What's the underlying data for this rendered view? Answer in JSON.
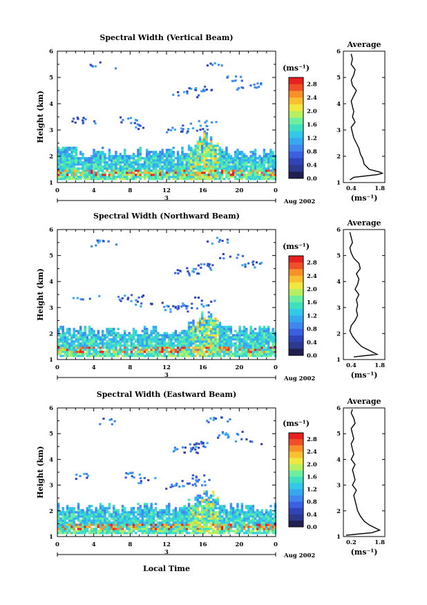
{
  "colorbar_unit": "(ms⁻¹)",
  "colorbar_ticks": [
    "2.8",
    "2.4",
    "2.0",
    "1.6",
    "1.2",
    "0.8",
    "0.4",
    "0.0"
  ],
  "colors": {
    "scale": [
      "#2b3a8c",
      "#2f44b8",
      "#3a5fe0",
      "#3f86f0",
      "#35a8f0",
      "#33c8e8",
      "#3ee0c0",
      "#6cf0a0",
      "#b6f060",
      "#f0e840",
      "#f8c030",
      "#f89028",
      "#f05028",
      "#e82020"
    ],
    "below_threshold": "#202050"
  },
  "panels": [
    {
      "title": "Spectral Width (Vertical Beam)",
      "ylabel": "Height (km)",
      "date_label": "Aug 2002",
      "day_label": "3",
      "avg_title": "Average",
      "avg_xlabel": "(ms⁻¹)",
      "avg_xticks": [
        "0.4",
        "1.8"
      ]
    },
    {
      "title": "Spectral Width (Northward Beam)",
      "ylabel": "Height (km)",
      "date_label": "Aug 2002",
      "day_label": "3",
      "avg_title": "Average",
      "avg_xlabel": "(ms⁻¹)",
      "avg_xticks": [
        "0.4",
        "1.8"
      ]
    },
    {
      "title": "Spectral Width (Eastward Beam)",
      "ylabel": "Height (km)",
      "date_label": "Aug 2002",
      "day_label": "3",
      "avg_title": "Average",
      "avg_xlabel": "(ms⁻¹)",
      "avg_xticks": [
        "0.2",
        "1.8"
      ]
    }
  ],
  "xlabel": "Local Time",
  "chart_data": [
    {
      "type": "heatmap",
      "title": "Spectral Width (Vertical Beam)",
      "xlabel": "",
      "ylabel": "Height (km)",
      "x_ticks": [
        "0",
        "4",
        "8",
        "12",
        "16",
        "20",
        "0"
      ],
      "y_ticks": [
        "1",
        "2",
        "3",
        "4",
        "5",
        "6"
      ],
      "xlim": [
        0,
        24
      ],
      "ylim": [
        1,
        6
      ],
      "colorbar": {
        "label": "(ms⁻¹)",
        "range": [
          0,
          3.0
        ]
      },
      "average_profile": {
        "title": "Average",
        "xlabel": "(ms⁻¹)",
        "xlim": [
          0.2,
          1.8
        ],
        "height": [
          1.1,
          1.2,
          1.3,
          1.35,
          1.4,
          1.5,
          1.7,
          1.9,
          2.1,
          2.3,
          2.5,
          2.7,
          2.9,
          3.1,
          3.3,
          3.5,
          3.7,
          3.9,
          4.1,
          4.3,
          4.5,
          4.7,
          4.9,
          5.1,
          5.3,
          5.5,
          5.7,
          5.9
        ],
        "width": [
          0.45,
          0.6,
          1.5,
          1.7,
          1.6,
          1.2,
          1.0,
          0.95,
          0.85,
          0.8,
          0.7,
          0.6,
          0.55,
          0.5,
          0.65,
          0.55,
          0.6,
          0.55,
          0.5,
          0.6,
          0.7,
          0.55,
          0.5,
          0.6,
          0.65,
          0.5,
          0.55,
          0.5
        ]
      }
    },
    {
      "type": "heatmap",
      "title": "Spectral Width (Northward Beam)",
      "xlabel": "",
      "ylabel": "Height (km)",
      "x_ticks": [
        "0",
        "4",
        "8",
        "12",
        "16",
        "20",
        "0"
      ],
      "y_ticks": [
        "1",
        "2",
        "3",
        "4",
        "5",
        "6"
      ],
      "xlim": [
        0,
        24
      ],
      "ylim": [
        1,
        6
      ],
      "colorbar": {
        "label": "(ms⁻¹)",
        "range": [
          0,
          3.0
        ]
      },
      "average_profile": {
        "title": "Average",
        "xlabel": "(ms⁻¹)",
        "xlim": [
          0.2,
          1.8
        ],
        "height": [
          1.1,
          1.2,
          1.3,
          1.4,
          1.5,
          1.7,
          1.9,
          2.1,
          2.3,
          2.5,
          2.7,
          2.9,
          3.1,
          3.3,
          3.5,
          3.7,
          3.9,
          4.1,
          4.3,
          4.5,
          4.7,
          4.9,
          5.1,
          5.3,
          5.5,
          5.7,
          5.9
        ],
        "width": [
          0.6,
          1.5,
          1.3,
          1.1,
          0.9,
          0.7,
          0.55,
          0.45,
          0.5,
          0.65,
          0.75,
          0.7,
          0.75,
          0.7,
          0.8,
          0.65,
          0.75,
          0.8,
          0.7,
          0.85,
          0.8,
          0.6,
          0.5,
          0.45,
          0.55,
          0.5,
          0.45
        ]
      }
    },
    {
      "type": "heatmap",
      "title": "Spectral Width (Eastward Beam)",
      "xlabel": "Local Time",
      "ylabel": "Height (km)",
      "x_ticks": [
        "0",
        "4",
        "8",
        "12",
        "16",
        "20",
        "0"
      ],
      "y_ticks": [
        "1",
        "2",
        "3",
        "4",
        "5",
        "6"
      ],
      "xlim": [
        0,
        24
      ],
      "ylim": [
        1,
        6
      ],
      "colorbar": {
        "label": "(ms⁻¹)",
        "range": [
          0,
          3.0
        ]
      },
      "average_profile": {
        "title": "Average",
        "xlabel": "(ms⁻¹)",
        "xlim": [
          0.2,
          1.8
        ],
        "height": [
          1.05,
          1.15,
          1.25,
          1.35,
          1.45,
          1.6,
          1.8,
          2.0,
          2.2,
          2.4,
          2.6,
          2.8,
          3.0,
          3.2,
          3.4,
          3.6,
          3.8,
          4.0,
          4.2,
          4.4,
          4.6,
          4.8,
          5.0,
          5.2,
          5.4,
          5.6,
          5.8,
          5.95
        ],
        "width": [
          0.3,
          1.3,
          1.6,
          1.4,
          1.2,
          1.0,
          0.85,
          0.75,
          0.7,
          0.65,
          0.6,
          0.7,
          0.55,
          0.65,
          0.6,
          0.55,
          0.65,
          0.5,
          0.6,
          0.55,
          0.5,
          0.6,
          0.55,
          0.5,
          0.65,
          0.6,
          0.5,
          0.55
        ]
      }
    }
  ]
}
